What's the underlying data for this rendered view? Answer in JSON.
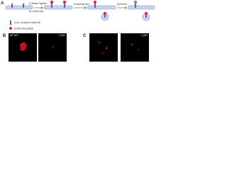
{
  "panels": {
    "a": {
      "label": "A",
      "steps": [
        "i) Biotin ligase",
        "ii) mSA-dye",
        "Endocytosis",
        "Quench"
      ],
      "legend": [
        "LDL receptor with AP",
        "mSA-Alexa568"
      ]
    },
    "b": {
      "label": "B",
      "images": [
        "AP-WT",
        "+ QSY"
      ]
    },
    "c": {
      "label": "C",
      "images": [
        "",
        "+ QSY"
      ]
    }
  }
}
